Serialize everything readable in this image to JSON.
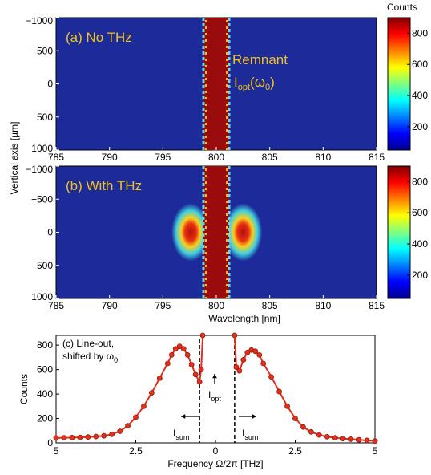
{
  "chart_data": [
    {
      "type": "heatmap",
      "label": "(a) No THz",
      "ylabel": "Vertical axis [µm]",
      "colorbar_label": "Counts",
      "xlim": [
        785,
        815
      ],
      "xticks": [
        785,
        790,
        795,
        800,
        805,
        810,
        815
      ],
      "ylim": [
        -1000,
        1000
      ],
      "yticks": [
        {
          "value": -1000,
          "label": "−1000"
        },
        {
          "value": -500,
          "label": "−500"
        },
        0,
        500,
        1000
      ],
      "clim": [
        50,
        900
      ],
      "cticks": [
        200,
        400,
        600,
        800
      ],
      "annotation": {
        "line1": "Remnant",
        "main": "I",
        "sub": "opt",
        "open": "(ω",
        "sub2": "0",
        "close": ")"
      }
    },
    {
      "type": "heatmap",
      "label": "(b) With THz",
      "xlabel": "Wavelength [nm]",
      "xlim": [
        785,
        815
      ],
      "xticks": [
        785,
        790,
        795,
        800,
        805,
        810,
        815
      ],
      "ylim": [
        -1000,
        1000
      ],
      "yticks": [
        {
          "value": -1000,
          "label": "−1000"
        },
        {
          "value": -500,
          "label": "−500"
        },
        0,
        500,
        1000
      ],
      "clim": [
        50,
        900
      ],
      "cticks": [
        200,
        400,
        600,
        800
      ]
    },
    {
      "type": "line",
      "title": [
        "(c) Line-out,",
        "shifted by ω"
      ],
      "title_sub": "0",
      "xlabel": "Frequency Ω/2π [THz]",
      "ylabel": "Counts",
      "xlim": [
        -5,
        5
      ],
      "xticks": [
        {
          "value": -5,
          "label": "5"
        },
        {
          "value": -2.5,
          "label": "2.5"
        },
        0,
        2.5,
        5
      ],
      "ylim": [
        0,
        880
      ],
      "yticks": [
        0,
        200,
        400,
        600,
        800
      ],
      "vlines": [
        -0.5,
        0.6
      ],
      "annotations": [
        {
          "main": "I",
          "sub": "opt"
        },
        {
          "main": "I",
          "sub": "sum"
        },
        {
          "main": "I",
          "sub": "sum"
        }
      ],
      "series": [
        {
          "color": "#e0301e",
          "x": [
            -5,
            -4.75,
            -4.5,
            -4.25,
            -4,
            -3.75,
            -3.5,
            -3.25,
            -3,
            -2.75,
            -2.5,
            -2.25,
            -2,
            -1.75,
            -1.5,
            -1.375,
            -1.25,
            -1.125,
            -1,
            -0.875,
            -0.75,
            -0.625,
            -0.5,
            -0.45,
            -0.4,
            0,
            0.6,
            0.65,
            0.75,
            0.875,
            1,
            1.125,
            1.25,
            1.375,
            1.5,
            1.75,
            2,
            2.25,
            2.5,
            2.75,
            3,
            3.25,
            3.5,
            3.75,
            4,
            4.25,
            4.5,
            4.75,
            5
          ],
          "values": [
            40,
            42,
            43,
            45,
            48,
            52,
            58,
            70,
            95,
            140,
            210,
            300,
            410,
            530,
            650,
            720,
            770,
            790,
            770,
            720,
            640,
            560,
            500,
            600,
            880,
            null,
            880,
            620,
            590,
            680,
            740,
            760,
            750,
            720,
            650,
            540,
            420,
            300,
            200,
            130,
            90,
            65,
            50,
            42,
            35,
            30,
            25,
            20,
            15
          ]
        }
      ]
    }
  ]
}
